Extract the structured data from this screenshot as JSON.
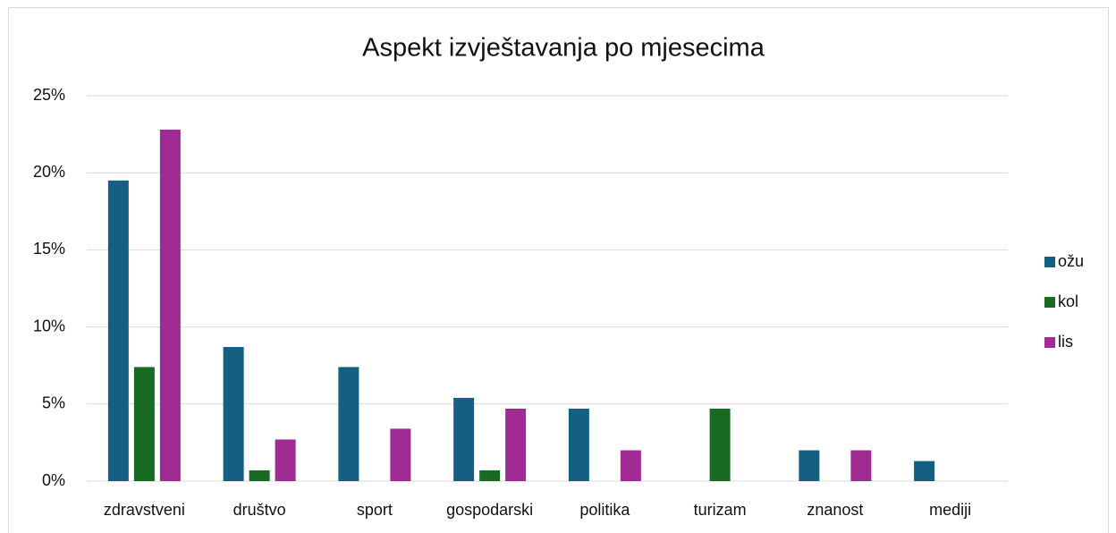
{
  "chart_data": {
    "type": "bar",
    "title": "Aspekt izvještavanja po mjesecima",
    "categories": [
      "zdravstveni",
      "društvo",
      "sport",
      "gospodarski",
      "politika",
      "turizam",
      "znanost",
      "mediji"
    ],
    "series": [
      {
        "name": "ožu",
        "color": "#156082",
        "values": [
          19.5,
          8.7,
          7.4,
          5.4,
          4.7,
          0,
          2.0,
          1.3
        ]
      },
      {
        "name": "kol",
        "color": "#196b24",
        "values": [
          7.4,
          0.7,
          0,
          0.7,
          0,
          4.7,
          0,
          0
        ]
      },
      {
        "name": "lis",
        "color": "#a02b93",
        "values": [
          22.8,
          2.7,
          3.4,
          4.7,
          2.0,
          0,
          2.0,
          0
        ]
      }
    ],
    "ylim": [
      0,
      25
    ],
    "yticks": [
      {
        "value": 0,
        "label": "0%"
      },
      {
        "value": 5,
        "label": "5%"
      },
      {
        "value": 10,
        "label": "10%"
      },
      {
        "value": 15,
        "label": "15%"
      },
      {
        "value": 20,
        "label": "20%"
      },
      {
        "value": 25,
        "label": "25%"
      }
    ],
    "grid": true,
    "legend": "right"
  }
}
